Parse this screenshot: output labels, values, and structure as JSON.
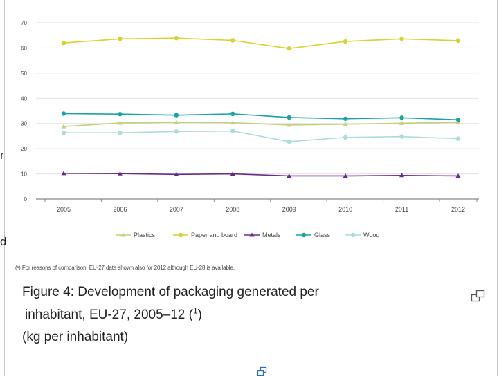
{
  "chart_data": {
    "type": "line",
    "title": "Figure 4: Development of packaging generated per inhabitant, EU-27, 2005–12",
    "ylabel": "",
    "xlabel": "",
    "ylim": [
      0,
      70
    ],
    "y_ticks": [
      "0",
      "10",
      "20",
      "30",
      "40",
      "50",
      "60",
      "70"
    ],
    "categories": [
      "2005",
      "2006",
      "2007",
      "2008",
      "2009",
      "2010",
      "2011",
      "2012"
    ],
    "grid": true,
    "legend_position": "bottom",
    "series": [
      {
        "name": "Plastics",
        "color": "#c2cf7c",
        "marker": "triangle",
        "values": [
          28.8,
          30.2,
          30.4,
          30.3,
          29.4,
          29.7,
          30.1,
          30.4
        ]
      },
      {
        "name": "Paper and board",
        "color": "#d8d22e",
        "marker": "circle",
        "values": [
          62.0,
          63.6,
          63.9,
          63.0,
          59.8,
          62.6,
          63.6,
          62.9
        ]
      },
      {
        "name": "Metals",
        "color": "#6a2a8c",
        "marker": "triangle",
        "values": [
          10.2,
          10.1,
          9.8,
          10.0,
          9.2,
          9.2,
          9.4,
          9.2
        ]
      },
      {
        "name": "Glass",
        "color": "#1aa3a0",
        "marker": "circle",
        "values": [
          33.9,
          33.7,
          33.3,
          33.8,
          32.4,
          31.9,
          32.3,
          31.5
        ]
      },
      {
        "name": "Wood",
        "color": "#a9dcda",
        "marker": "circle",
        "values": [
          26.3,
          26.3,
          26.8,
          27.0,
          22.8,
          24.5,
          24.8,
          24.0
        ]
      }
    ]
  },
  "footnote": "(¹) For reasons of comparison, EU-27 data shown also for 2012 although EU-28 is available.",
  "caption": {
    "line1": "Figure 4: Development of packaging generated per",
    "line2": "inhabitant, EU-27, 2005–12 (",
    "note_ref": "1",
    "line2_end": ")",
    "line3": "(kg per inhabitant)"
  },
  "edge_text": {
    "top": "r",
    "bottom": "d"
  },
  "icons": {
    "expand": "expand-icon",
    "caption_expand": "expand-icon"
  }
}
